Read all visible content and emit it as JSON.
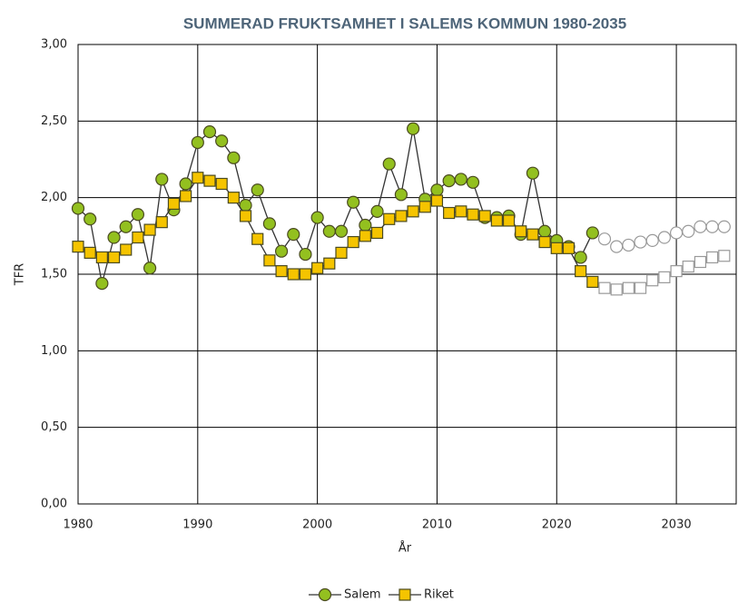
{
  "chart_data": {
    "type": "line",
    "title": "SUMMERAD FRUKTSAMHET I SALEMS KOMMUN 1980-2035",
    "x_label": "År",
    "y_label": "TFR",
    "x": [
      1980,
      1981,
      1982,
      1983,
      1984,
      1985,
      1986,
      1987,
      1988,
      1989,
      1990,
      1991,
      1992,
      1993,
      1994,
      1995,
      1996,
      1997,
      1998,
      1999,
      2000,
      2001,
      2002,
      2003,
      2004,
      2005,
      2006,
      2007,
      2008,
      2009,
      2010,
      2011,
      2012,
      2013,
      2014,
      2015,
      2016,
      2017,
      2018,
      2019,
      2020,
      2021,
      2022,
      2023,
      2024,
      2025,
      2026,
      2027,
      2028,
      2029,
      2030,
      2031,
      2032,
      2033,
      2034
    ],
    "series": [
      {
        "name": "Salem",
        "color": "#93c01f",
        "marker": "circle",
        "values": [
          1.93,
          1.86,
          1.44,
          1.74,
          1.81,
          1.89,
          1.54,
          2.12,
          1.92,
          2.09,
          2.36,
          2.43,
          2.37,
          2.26,
          1.95,
          2.05,
          1.83,
          1.65,
          1.76,
          1.63,
          1.87,
          1.78,
          1.78,
          1.97,
          1.82,
          1.91,
          2.22,
          2.02,
          2.45,
          1.99,
          2.05,
          2.11,
          2.12,
          2.1,
          1.87,
          1.87,
          1.88,
          1.76,
          2.16,
          1.78,
          1.72,
          1.68,
          1.61,
          1.77,
          1.73,
          1.68,
          1.69,
          1.71,
          1.72,
          1.74,
          1.77,
          1.78,
          1.81,
          1.81,
          1.81
        ]
      },
      {
        "name": "Riket",
        "color": "#f5c400",
        "marker": "square",
        "values": [
          1.68,
          1.64,
          1.61,
          1.61,
          1.66,
          1.74,
          1.79,
          1.84,
          1.96,
          2.01,
          2.13,
          2.11,
          2.09,
          2.0,
          1.88,
          1.73,
          1.59,
          1.52,
          1.5,
          1.5,
          1.54,
          1.57,
          1.64,
          1.71,
          1.75,
          1.77,
          1.86,
          1.88,
          1.91,
          1.94,
          1.98,
          1.9,
          1.91,
          1.89,
          1.88,
          1.85,
          1.85,
          1.78,
          1.76,
          1.71,
          1.67,
          1.67,
          1.52,
          1.45,
          1.41,
          1.4,
          1.41,
          1.41,
          1.46,
          1.48,
          1.52,
          1.55,
          1.58,
          1.61,
          1.62
        ]
      }
    ],
    "open_markers_from": 2024,
    "xlim": [
      1980,
      2035
    ],
    "xticks": [
      1980,
      1990,
      2000,
      2010,
      2020,
      2030
    ],
    "ylim": [
      0,
      3
    ],
    "yticks": [
      {
        "value": 0,
        "label": "0,00"
      },
      {
        "value": 0.5,
        "label": "0,50"
      },
      {
        "value": 1,
        "label": "1,00"
      },
      {
        "value": 1.5,
        "label": "1,50"
      },
      {
        "value": 2,
        "label": "2,00"
      },
      {
        "value": 2.5,
        "label": "2,50"
      },
      {
        "value": 3,
        "label": "3,00"
      }
    ],
    "grid": true,
    "legend": "bottom"
  }
}
